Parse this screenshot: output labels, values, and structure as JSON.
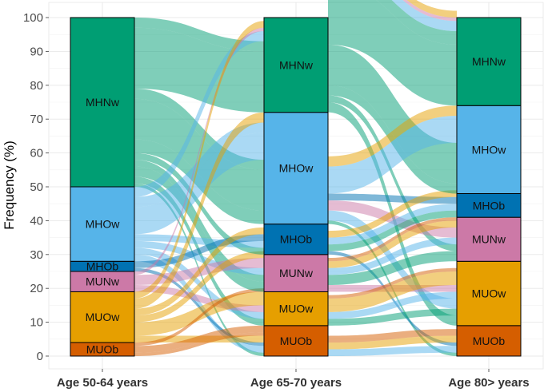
{
  "chart_data": {
    "type": "alluvial",
    "ylabel": "Frequency (%)",
    "xlabel": "",
    "ylim": [
      0,
      100
    ],
    "yticks": [
      0,
      10,
      20,
      30,
      40,
      50,
      60,
      70,
      80,
      90,
      100
    ],
    "grid": true,
    "legend": "none",
    "axes": [
      "Age 50-64 years",
      "Age 65-70 years",
      "Age 80> years"
    ],
    "categories": [
      "MUOb",
      "MUOw",
      "MUNw",
      "MHOb",
      "MHOw",
      "MHNw"
    ],
    "colors": {
      "MUOb": "#d55e00",
      "MUOw": "#e69f00",
      "MUNw": "#cc79a7",
      "MHOb": "#0072b2",
      "MHOw": "#56b4e9",
      "MHNw": "#009e73"
    },
    "stratum_values": [
      {
        "MUOb": 4,
        "MUOw": 15,
        "MUNw": 6,
        "MHOb": 3,
        "MHOw": 22,
        "MHNw": 50
      },
      {
        "MUOb": 9,
        "MUOw": 10,
        "MUNw": 11,
        "MHOb": 9,
        "MHOw": 33,
        "MHNw": 28
      },
      {
        "MUOb": 9,
        "MUOw": 19,
        "MUNw": 13,
        "MHOb": 7,
        "MHOw": 26,
        "MHNw": 26
      }
    ],
    "flows": [
      {
        "from": [
          "MHNw",
          "MHNw"
        ],
        "to": [
          "MHNw",
          "MHNw"
        ],
        "value": 18
      },
      {
        "from": [
          "MHNw",
          "MHNw"
        ],
        "to": [
          "MHNw",
          "MHOw"
        ],
        "value": 3
      },
      {
        "from": [
          "MHNw",
          "MHNw"
        ],
        "to": [
          "MHOw",
          "MHNw"
        ],
        "value": 4
      },
      {
        "from": [
          "MHNw",
          "MHNw"
        ],
        "to": [
          "MHOw",
          "MHOw"
        ],
        "value": 12
      },
      {
        "from": [
          "MHNw",
          "MHNw"
        ],
        "to": [
          "MHOw",
          "MUOw"
        ],
        "value": 3
      },
      {
        "from": [
          "MHNw",
          "MHOb"
        ],
        "to": [
          "MHOb",
          "MHOb"
        ],
        "value": 2
      },
      {
        "from": [
          "MHNw",
          "MUNw"
        ],
        "to": [
          "MUNw",
          "MUNw"
        ],
        "value": 3
      },
      {
        "from": [
          "MHNw",
          "MUOw"
        ],
        "to": [
          "MUOw",
          "MUOw"
        ],
        "value": 2
      },
      {
        "from": [
          "MHNw",
          "MHOw"
        ],
        "to": [
          "MUOb",
          "MUOb"
        ],
        "value": 1
      },
      {
        "from": [
          "MHNw",
          "MHNw"
        ],
        "to": [
          "MUNw",
          "MUNw"
        ],
        "value": 2
      },
      {
        "from": [
          "MHOw",
          "MHNw"
        ],
        "to": [
          "MHNw",
          "MHNw"
        ],
        "value": 3
      },
      {
        "from": [
          "MHOw",
          "MHOw"
        ],
        "to": [
          "MHOw",
          "MHOw"
        ],
        "value": 8
      },
      {
        "from": [
          "MHOw",
          "MHOw"
        ],
        "to": [
          "MHOw",
          "MUOw"
        ],
        "value": 3
      },
      {
        "from": [
          "MHOw",
          "MHOb"
        ],
        "to": [
          "MHOb",
          "MHOb"
        ],
        "value": 2
      },
      {
        "from": [
          "MHOw",
          "MUNw"
        ],
        "to": [
          "MUNw",
          "MUNw"
        ],
        "value": 2
      },
      {
        "from": [
          "MHOw",
          "MUOw"
        ],
        "to": [
          "MUOw",
          "MUOw"
        ],
        "value": 2
      },
      {
        "from": [
          "MHOw",
          "MUOb"
        ],
        "to": [
          "MUOb",
          "MUOb"
        ],
        "value": 2
      },
      {
        "from": [
          "MHOb",
          "MHOw"
        ],
        "to": [
          "MHOb",
          "MHOb"
        ],
        "value": 2
      },
      {
        "from": [
          "MHOb",
          "MHOb"
        ],
        "to": [
          "MUOb",
          "MUOb"
        ],
        "value": 1
      },
      {
        "from": [
          "MUNw",
          "MHNw"
        ],
        "to": [
          "MHNw",
          "MHNw"
        ],
        "value": 1
      },
      {
        "from": [
          "MUNw",
          "MHOw"
        ],
        "to": [
          "MUNw",
          "MUNw"
        ],
        "value": 3
      },
      {
        "from": [
          "MUNw",
          "MUNw"
        ],
        "to": [
          "MUOw",
          "MUOw"
        ],
        "value": 2
      },
      {
        "from": [
          "MUOw",
          "MHNw"
        ],
        "to": [
          "MHNw",
          "MHNw"
        ],
        "value": 2
      },
      {
        "from": [
          "MUOw",
          "MHOw"
        ],
        "to": [
          "MHOw",
          "MHOw"
        ],
        "value": 3
      },
      {
        "from": [
          "MUOw",
          "MHOb"
        ],
        "to": [
          "MHOb",
          "MHOb"
        ],
        "value": 2
      },
      {
        "from": [
          "MUOw",
          "MUNw"
        ],
        "to": [
          "MUNw",
          "MUNw"
        ],
        "value": 2
      },
      {
        "from": [
          "MUOw",
          "MUOw"
        ],
        "to": [
          "MUOw",
          "MUOw"
        ],
        "value": 4
      },
      {
        "from": [
          "MUOw",
          "MUOb"
        ],
        "to": [
          "MUOb",
          "MUOb"
        ],
        "value": 2
      },
      {
        "from": [
          "MUOb",
          "MUNw"
        ],
        "to": [
          "MUOb",
          "MUNw"
        ],
        "value": 1
      },
      {
        "from": [
          "MUOb",
          "MUOw"
        ],
        "to": [
          "MUOw",
          "MUOw"
        ],
        "value": 1
      },
      {
        "from": [
          "MUOb",
          "MUOb"
        ],
        "to": [
          "MUOb",
          "MUOb"
        ],
        "value": 2
      }
    ]
  }
}
